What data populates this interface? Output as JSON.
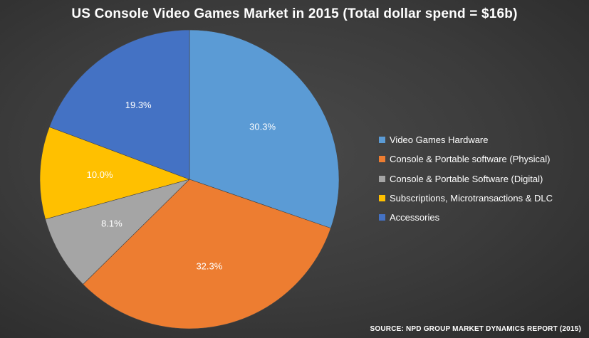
{
  "chart_data": {
    "type": "pie",
    "title": "US Console Video Games Market in 2015 (Total dollar spend = $16b)",
    "categories": [
      "Video Games Hardware",
      "Console & Portable software (Physical)",
      "Console & Portable Software (Digital)",
      "Subscriptions, Microtransactions & DLC",
      "Accessories"
    ],
    "values": [
      30.3,
      32.3,
      8.1,
      10.0,
      19.3
    ],
    "labels": [
      "30.3%",
      "32.3%",
      "8.1%",
      "10.0%",
      "19.3%"
    ],
    "colors": [
      "#5b9bd5",
      "#ed7d31",
      "#a5a5a5",
      "#ffc000",
      "#4472c4"
    ],
    "legend_position": "right",
    "source": "SOURCE: NPD GROUP MARKET DYNAMICS REPORT (2015)"
  }
}
